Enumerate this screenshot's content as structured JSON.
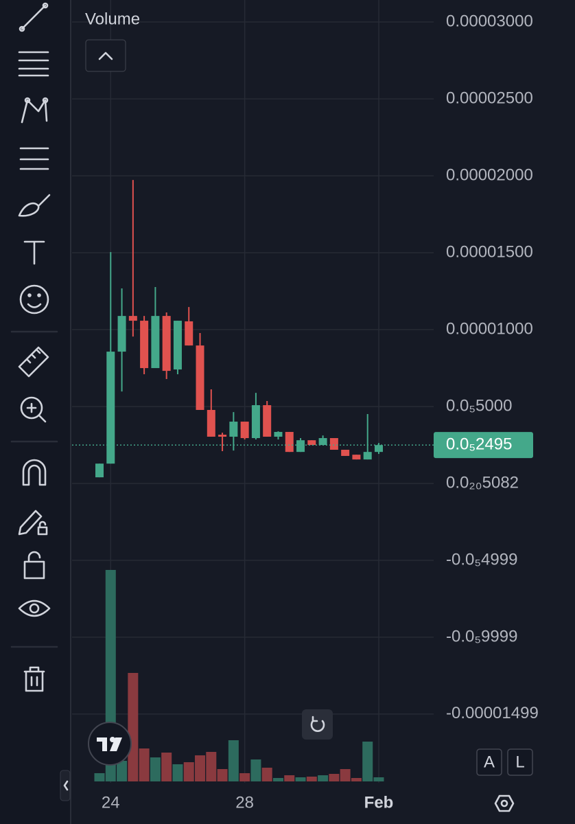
{
  "chart_data": {
    "type": "candlestick",
    "categories": [
      null,
      "24",
      null,
      null,
      null,
      null,
      null,
      null,
      null,
      null,
      null,
      null,
      null,
      "28",
      null,
      null,
      null,
      null,
      null,
      null,
      null,
      null,
      null,
      null,
      null,
      "Feb"
    ],
    "open": [
      4e-07,
      1.29e-06,
      8.57e-06,
      1.089e-05,
      1.058e-05,
      7.5e-06,
      1.089e-05,
      7.41e-06,
      1.054e-05,
      8.97e-06,
      4.78e-06,
      3.17e-06,
      3.04e-06,
      4.02e-06,
      2.95e-06,
      5.09e-06,
      3.04e-06,
      3.35e-06,
      2.05e-06,
      2.81e-06,
      2.5e-06,
      2.95e-06,
      2.19e-06,
      1.87e-06,
      1.56e-06,
      2.05e-06
    ],
    "high": [
      1.29e-06,
      1.504e-05,
      1.268e-05,
      1.973e-05,
      1.089e-05,
      1.277e-05,
      1.112e-05,
      1.058e-05,
      1.147e-05,
      9.78e-06,
      6.12e-06,
      3.3e-06,
      4.64e-06,
      4.02e-06,
      5.89e-06,
      5.36e-06,
      3.39e-06,
      3.35e-06,
      2.95e-06,
      2.81e-06,
      3.12e-06,
      2.95e-06,
      2.19e-06,
      1.87e-06,
      4.51e-06,
      2.63e-06
    ],
    "low": [
      4e-07,
      1.29e-06,
      5.98e-06,
      9.55e-06,
      7.1e-06,
      7.5e-06,
      6.79e-06,
      7.1e-06,
      8.97e-06,
      4.78e-06,
      3.04e-06,
      2.1e-06,
      2.14e-06,
      2.86e-06,
      2.86e-06,
      3.04e-06,
      2.86e-06,
      2.05e-06,
      2.05e-06,
      2.5e-06,
      2.5e-06,
      2.19e-06,
      1.79e-06,
      1.56e-06,
      1.56e-06,
      1.92e-06
    ],
    "close": [
      1.29e-06,
      8.57e-06,
      1.089e-05,
      1.058e-05,
      7.5e-06,
      1.089e-05,
      7.32e-06,
      1.058e-05,
      8.97e-06,
      4.78e-06,
      3.04e-06,
      3.04e-06,
      4.02e-06,
      2.95e-06,
      5.09e-06,
      3.04e-06,
      3.35e-06,
      2.05e-06,
      2.81e-06,
      2.5e-06,
      2.95e-06,
      2.19e-06,
      1.79e-06,
      1.56e-06,
      2.05e-06,
      2.495e-06
    ],
    "up_color": "#44a88a",
    "down_color": "#e0524f",
    "volume": {
      "title": "Volume",
      "up_color": "#2d6b5e",
      "down_color": "#8a3a3f",
      "values": [
        12,
        308,
        30,
        158,
        48,
        35,
        42,
        25,
        28,
        38,
        43,
        18,
        60,
        12,
        32,
        20,
        5,
        9,
        6,
        7,
        9,
        11,
        18,
        5,
        58,
        6
      ]
    },
    "ylim": [
      -1.946e-05,
      3.143e-05
    ],
    "yticks": [
      {
        "value": 3e-05,
        "label": "0.00003000"
      },
      {
        "value": 2.5e-05,
        "label": "0.00002500"
      },
      {
        "value": 2e-05,
        "label": "0.00002000"
      },
      {
        "value": 1.5e-05,
        "label": "0.00001500"
      },
      {
        "value": 1e-05,
        "label": "0.00001000"
      },
      {
        "value": 5e-06,
        "label": "0.0₅5000"
      },
      {
        "value": 5.082e-21,
        "label": "0.0₂₀5082"
      },
      {
        "value": -4.999e-06,
        "label": "-0.0₅4999"
      },
      {
        "value": -9.999e-06,
        "label": "-0.0₅9999"
      },
      {
        "value": -1.499e-05,
        "label": "-0.00001499"
      }
    ],
    "last_price": {
      "value": 2.495e-06,
      "label": "0.0₅2495"
    },
    "grid": true,
    "buttons": [
      "A",
      "L"
    ]
  }
}
